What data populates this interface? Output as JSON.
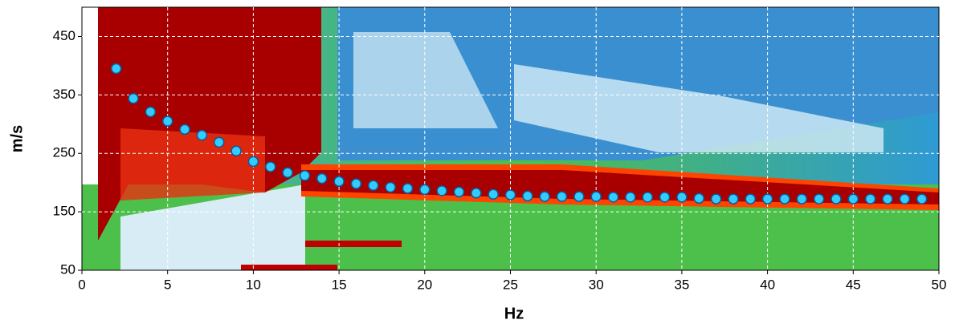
{
  "chart_data": {
    "type": "scatter",
    "xlabel": "Hz",
    "ylabel": "m/s",
    "x": [
      2,
      3,
      4,
      5,
      6,
      7,
      8,
      9,
      10,
      11,
      12,
      13,
      14,
      15,
      16,
      17,
      18,
      19,
      20,
      21,
      22,
      23,
      24,
      25,
      26,
      27,
      28,
      29,
      30,
      31,
      32,
      33,
      34,
      35,
      36,
      37,
      38,
      39,
      40,
      41,
      42,
      43,
      44,
      45,
      46,
      47,
      48,
      49
    ],
    "values": [
      395,
      344,
      321,
      305,
      291,
      281,
      269,
      254,
      236,
      227,
      217,
      212,
      207,
      202,
      198,
      195,
      192,
      190,
      188,
      186,
      184,
      182,
      180,
      179,
      177,
      176,
      176,
      176,
      176,
      175,
      175,
      175,
      175,
      175,
      173,
      172,
      172,
      172,
      172,
      172,
      172,
      172,
      172,
      172,
      172,
      172,
      172,
      172
    ],
    "color": "#33ccff",
    "xlim": [
      0,
      50
    ],
    "xticks": [
      0,
      5,
      10,
      15,
      20,
      25,
      30,
      35,
      40,
      45,
      50
    ],
    "ylim": [
      50,
      500
    ],
    "yticks": [
      50,
      150,
      250,
      350,
      450
    ],
    "grid": true
  }
}
